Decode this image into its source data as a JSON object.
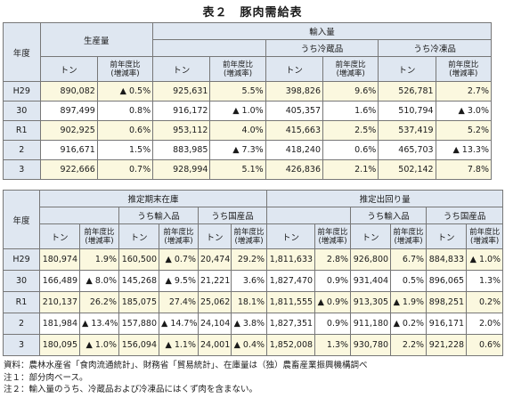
{
  "title": "表２　豚肉需給表",
  "table1": {
    "year_header": "年度",
    "production_header": "生産量",
    "imports_header": "輸入量",
    "chilled_header": "うち冷蔵品",
    "frozen_header": "うち冷凍品",
    "ton_label": "トン",
    "yoy_line1": "前年度比",
    "yoy_line2": "(増減率)",
    "rows": [
      {
        "year": "H29",
        "c1": "890,082",
        "c2": "▲ 0.5%",
        "c3": "925,631",
        "c4": "5.5%",
        "c5": "398,826",
        "c6": "9.6%",
        "c7": "526,781",
        "c8": "2.7%"
      },
      {
        "year": "30",
        "c1": "897,499",
        "c2": "0.8%",
        "c3": "916,172",
        "c4": "▲ 1.0%",
        "c5": "405,357",
        "c6": "1.6%",
        "c7": "510,794",
        "c8": "▲ 3.0%"
      },
      {
        "year": "R1",
        "c1": "902,925",
        "c2": "0.6%",
        "c3": "953,112",
        "c4": "4.0%",
        "c5": "415,663",
        "c6": "2.5%",
        "c7": "537,419",
        "c8": "5.2%"
      },
      {
        "year": "2",
        "c1": "916,671",
        "c2": "1.5%",
        "c3": "883,985",
        "c4": "▲ 7.3%",
        "c5": "418,240",
        "c6": "0.6%",
        "c7": "465,703",
        "c8": "▲ 13.3%"
      },
      {
        "year": "3",
        "c1": "922,666",
        "c2": "0.7%",
        "c3": "928,994",
        "c4": "5.1%",
        "c5": "426,836",
        "c6": "2.1%",
        "c7": "502,142",
        "c8": "7.8%"
      }
    ]
  },
  "table2": {
    "year_header": "年度",
    "stock_header": "推定期末在庫",
    "shipment_header": "推定出回り量",
    "imported_header": "うち輸入品",
    "domestic_header": "うち国産品",
    "ton_label": "トン",
    "yoy_line1": "前年度比",
    "yoy_line2": "(増減率)",
    "rows": [
      {
        "year": "H29",
        "c1": "180,974",
        "c2": "1.9%",
        "c3": "160,500",
        "c4": "▲ 0.7%",
        "c5": "20,474",
        "c6": "29.2%",
        "c7": "1,811,633",
        "c8": "2.8%",
        "c9": "926,800",
        "c10": "6.7%",
        "c11": "884,833",
        "c12": "▲ 1.0%"
      },
      {
        "year": "30",
        "c1": "166,489",
        "c2": "▲ 8.0%",
        "c3": "145,268",
        "c4": "▲ 9.5%",
        "c5": "21,221",
        "c6": "3.6%",
        "c7": "1,827,470",
        "c8": "0.9%",
        "c9": "931,404",
        "c10": "0.5%",
        "c11": "896,065",
        "c12": "1.3%"
      },
      {
        "year": "R1",
        "c1": "210,137",
        "c2": "26.2%",
        "c3": "185,075",
        "c4": "27.4%",
        "c5": "25,062",
        "c6": "18.1%",
        "c7": "1,811,555",
        "c8": "▲ 0.9%",
        "c9": "913,305",
        "c10": "▲ 1.9%",
        "c11": "898,251",
        "c12": "0.2%"
      },
      {
        "year": "2",
        "c1": "181,984",
        "c2": "▲ 13.4%",
        "c3": "157,880",
        "c4": "▲ 14.7%",
        "c5": "24,104",
        "c6": "▲ 3.8%",
        "c7": "1,827,351",
        "c8": "0.9%",
        "c9": "911,180",
        "c10": "▲ 0.2%",
        "c11": "916,171",
        "c12": "2.0%"
      },
      {
        "year": "3",
        "c1": "180,095",
        "c2": "▲ 1.0%",
        "c3": "156,094",
        "c4": "▲ 1.1%",
        "c5": "24,001",
        "c6": "▲ 0.4%",
        "c7": "1,852,008",
        "c8": "1.3%",
        "c9": "930,780",
        "c10": "2.2%",
        "c11": "921,228",
        "c12": "0.6%"
      }
    ]
  },
  "notes": [
    "資料：農林水産省「食肉流通統計」、財務省「貿易統計」、在庫量は（独）農畜産業振興機構調べ",
    "注１：部分肉ベース。",
    "注２：輸入量のうち、冷蔵品および冷凍品にはくず肉を含まない。"
  ],
  "colors": {
    "header_bg": "#dfe7f1",
    "cell_bg": "#fbf8df",
    "border": "#777777"
  }
}
